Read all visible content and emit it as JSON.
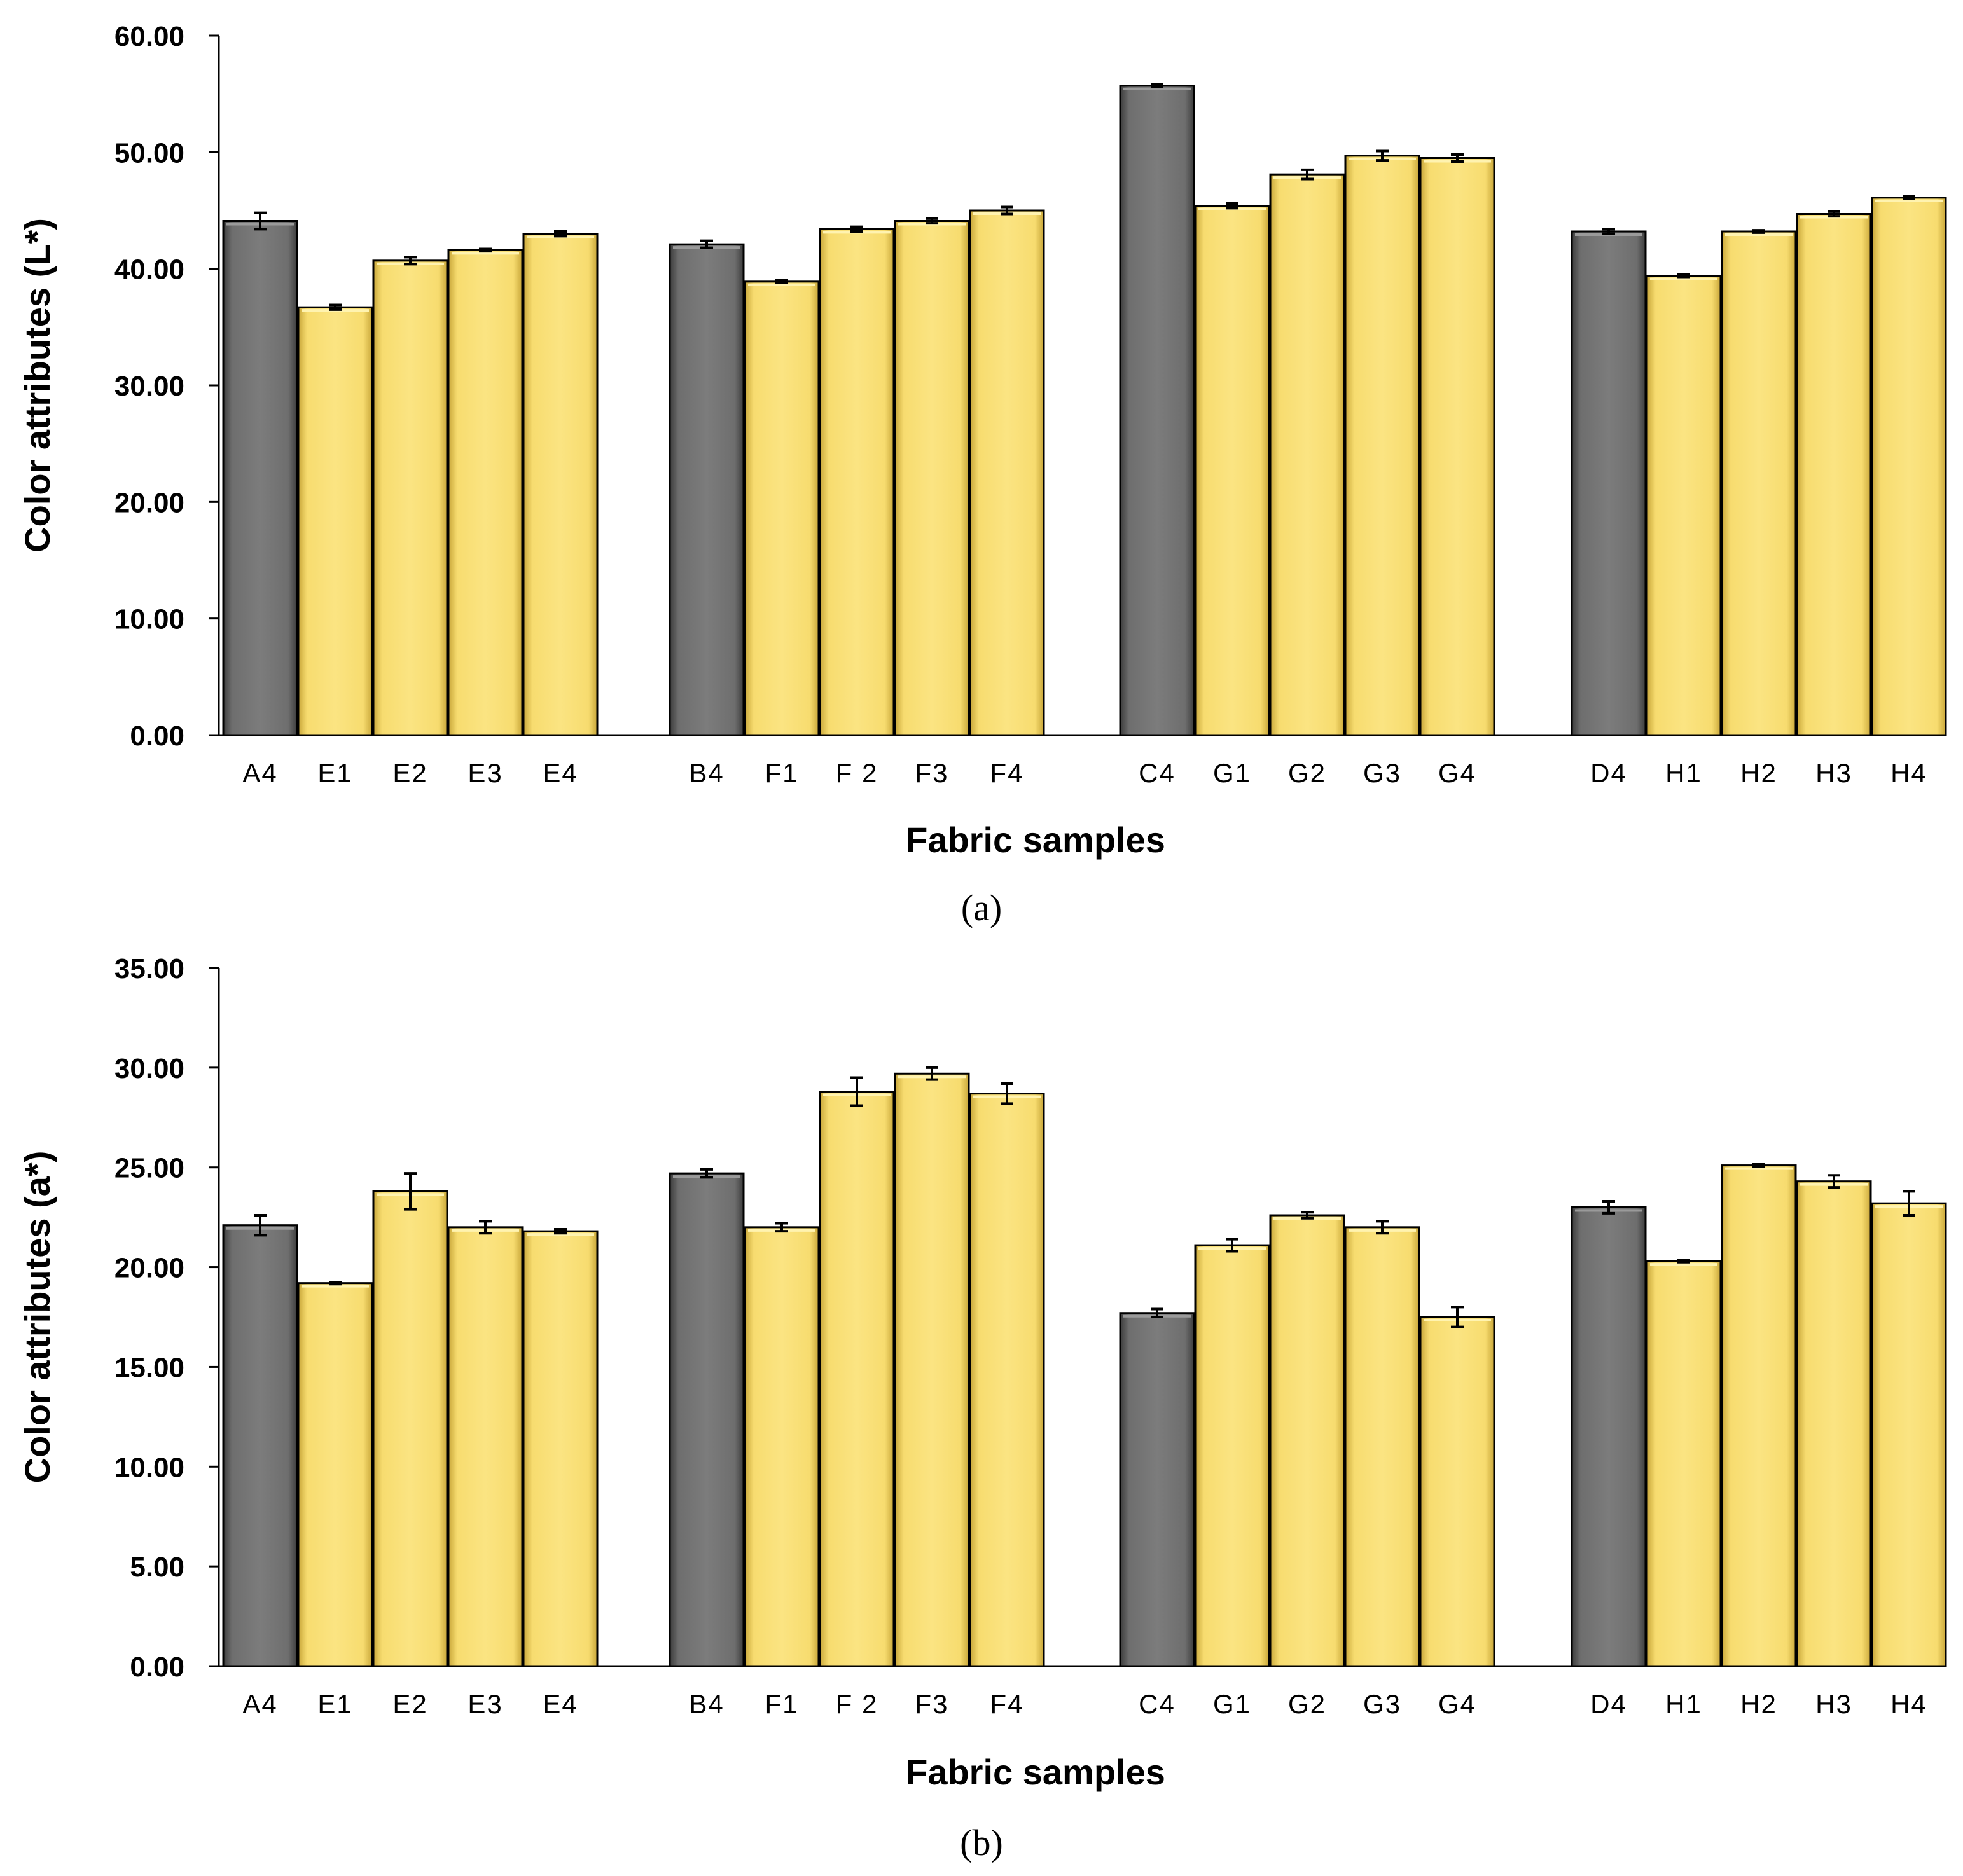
{
  "colors": {
    "control": "#6e6e6e",
    "treated": "#f7dc6f",
    "outline": "#000000"
  },
  "chart_data": [
    {
      "type": "bar",
      "panel_label": "(a)",
      "xlabel": "Fabric samples",
      "ylabel": "Color attributes (L*)",
      "ylim": [
        0,
        60
      ],
      "yticks": [
        0,
        10,
        20,
        30,
        40,
        50,
        60
      ],
      "ytick_labels": [
        "0.00",
        "10.00",
        "20.00",
        "30.00",
        "40.00",
        "50.00",
        "60.00"
      ],
      "groups": [
        {
          "bars": [
            {
              "label": "A4",
              "value": 44.1,
              "err": 0.7,
              "kind": "control"
            },
            {
              "label": "E1",
              "value": 36.7,
              "err": 0.2,
              "kind": "treated"
            },
            {
              "label": "E2",
              "value": 40.7,
              "err": 0.3,
              "kind": "treated"
            },
            {
              "label": "E3",
              "value": 41.6,
              "err": 0.1,
              "kind": "treated"
            },
            {
              "label": "E4",
              "value": 43.0,
              "err": 0.2,
              "kind": "treated"
            }
          ]
        },
        {
          "bars": [
            {
              "label": "B4",
              "value": 42.1,
              "err": 0.3,
              "kind": "control"
            },
            {
              "label": "F1",
              "value": 38.9,
              "err": 0.1,
              "kind": "treated"
            },
            {
              "label": "F 2",
              "value": 43.4,
              "err": 0.2,
              "kind": "treated"
            },
            {
              "label": "F3",
              "value": 44.1,
              "err": 0.2,
              "kind": "treated"
            },
            {
              "label": "F4",
              "value": 45.0,
              "err": 0.3,
              "kind": "treated"
            }
          ]
        },
        {
          "bars": [
            {
              "label": "C4",
              "value": 55.7,
              "err": 0.1,
              "kind": "control"
            },
            {
              "label": "G1",
              "value": 45.4,
              "err": 0.2,
              "kind": "treated"
            },
            {
              "label": "G2",
              "value": 48.1,
              "err": 0.4,
              "kind": "treated"
            },
            {
              "label": "G3",
              "value": 49.7,
              "err": 0.4,
              "kind": "treated"
            },
            {
              "label": "G4",
              "value": 49.5,
              "err": 0.3,
              "kind": "treated"
            }
          ]
        },
        {
          "bars": [
            {
              "label": "D4",
              "value": 43.2,
              "err": 0.2,
              "kind": "control"
            },
            {
              "label": "H1",
              "value": 39.4,
              "err": 0.1,
              "kind": "treated"
            },
            {
              "label": "H2",
              "value": 43.2,
              "err": 0.1,
              "kind": "treated"
            },
            {
              "label": "H3",
              "value": 44.7,
              "err": 0.2,
              "kind": "treated"
            },
            {
              "label": "H4",
              "value": 46.1,
              "err": 0.1,
              "kind": "treated"
            }
          ]
        }
      ]
    },
    {
      "type": "bar",
      "panel_label": "(b)",
      "xlabel": "Fabric samples",
      "ylabel": "Color attributes (a*)",
      "ylim": [
        0,
        35
      ],
      "yticks": [
        0,
        5,
        10,
        15,
        20,
        25,
        30,
        35
      ],
      "ytick_labels": [
        "0.00",
        "5.00",
        "10.00",
        "15.00",
        "20.00",
        "25.00",
        "30.00",
        "35.00"
      ],
      "groups": [
        {
          "bars": [
            {
              "label": "A4",
              "value": 22.1,
              "err": 0.5,
              "kind": "control"
            },
            {
              "label": "E1",
              "value": 19.2,
              "err": 0.05,
              "kind": "treated"
            },
            {
              "label": "E2",
              "value": 23.8,
              "err": 0.9,
              "kind": "treated"
            },
            {
              "label": "E3",
              "value": 22.0,
              "err": 0.3,
              "kind": "treated"
            },
            {
              "label": "E4",
              "value": 21.8,
              "err": 0.1,
              "kind": "treated"
            }
          ]
        },
        {
          "bars": [
            {
              "label": "B4",
              "value": 24.7,
              "err": 0.2,
              "kind": "control"
            },
            {
              "label": "F1",
              "value": 22.0,
              "err": 0.2,
              "kind": "treated"
            },
            {
              "label": "F 2",
              "value": 28.8,
              "err": 0.7,
              "kind": "treated"
            },
            {
              "label": "F3",
              "value": 29.7,
              "err": 0.3,
              "kind": "treated"
            },
            {
              "label": "F4",
              "value": 28.7,
              "err": 0.5,
              "kind": "treated"
            }
          ]
        },
        {
          "bars": [
            {
              "label": "C4",
              "value": 17.7,
              "err": 0.2,
              "kind": "control"
            },
            {
              "label": "G1",
              "value": 21.1,
              "err": 0.3,
              "kind": "treated"
            },
            {
              "label": "G2",
              "value": 22.6,
              "err": 0.15,
              "kind": "treated"
            },
            {
              "label": "G3",
              "value": 22.0,
              "err": 0.3,
              "kind": "treated"
            },
            {
              "label": "G4",
              "value": 17.5,
              "err": 0.5,
              "kind": "treated"
            }
          ]
        },
        {
          "bars": [
            {
              "label": "D4",
              "value": 23.0,
              "err": 0.3,
              "kind": "control"
            },
            {
              "label": "H1",
              "value": 20.3,
              "err": 0.05,
              "kind": "treated"
            },
            {
              "label": "H2",
              "value": 25.1,
              "err": 0.05,
              "kind": "treated"
            },
            {
              "label": "H3",
              "value": 24.3,
              "err": 0.3,
              "kind": "treated"
            },
            {
              "label": "H4",
              "value": 23.2,
              "err": 0.6,
              "kind": "treated"
            }
          ]
        }
      ]
    }
  ]
}
